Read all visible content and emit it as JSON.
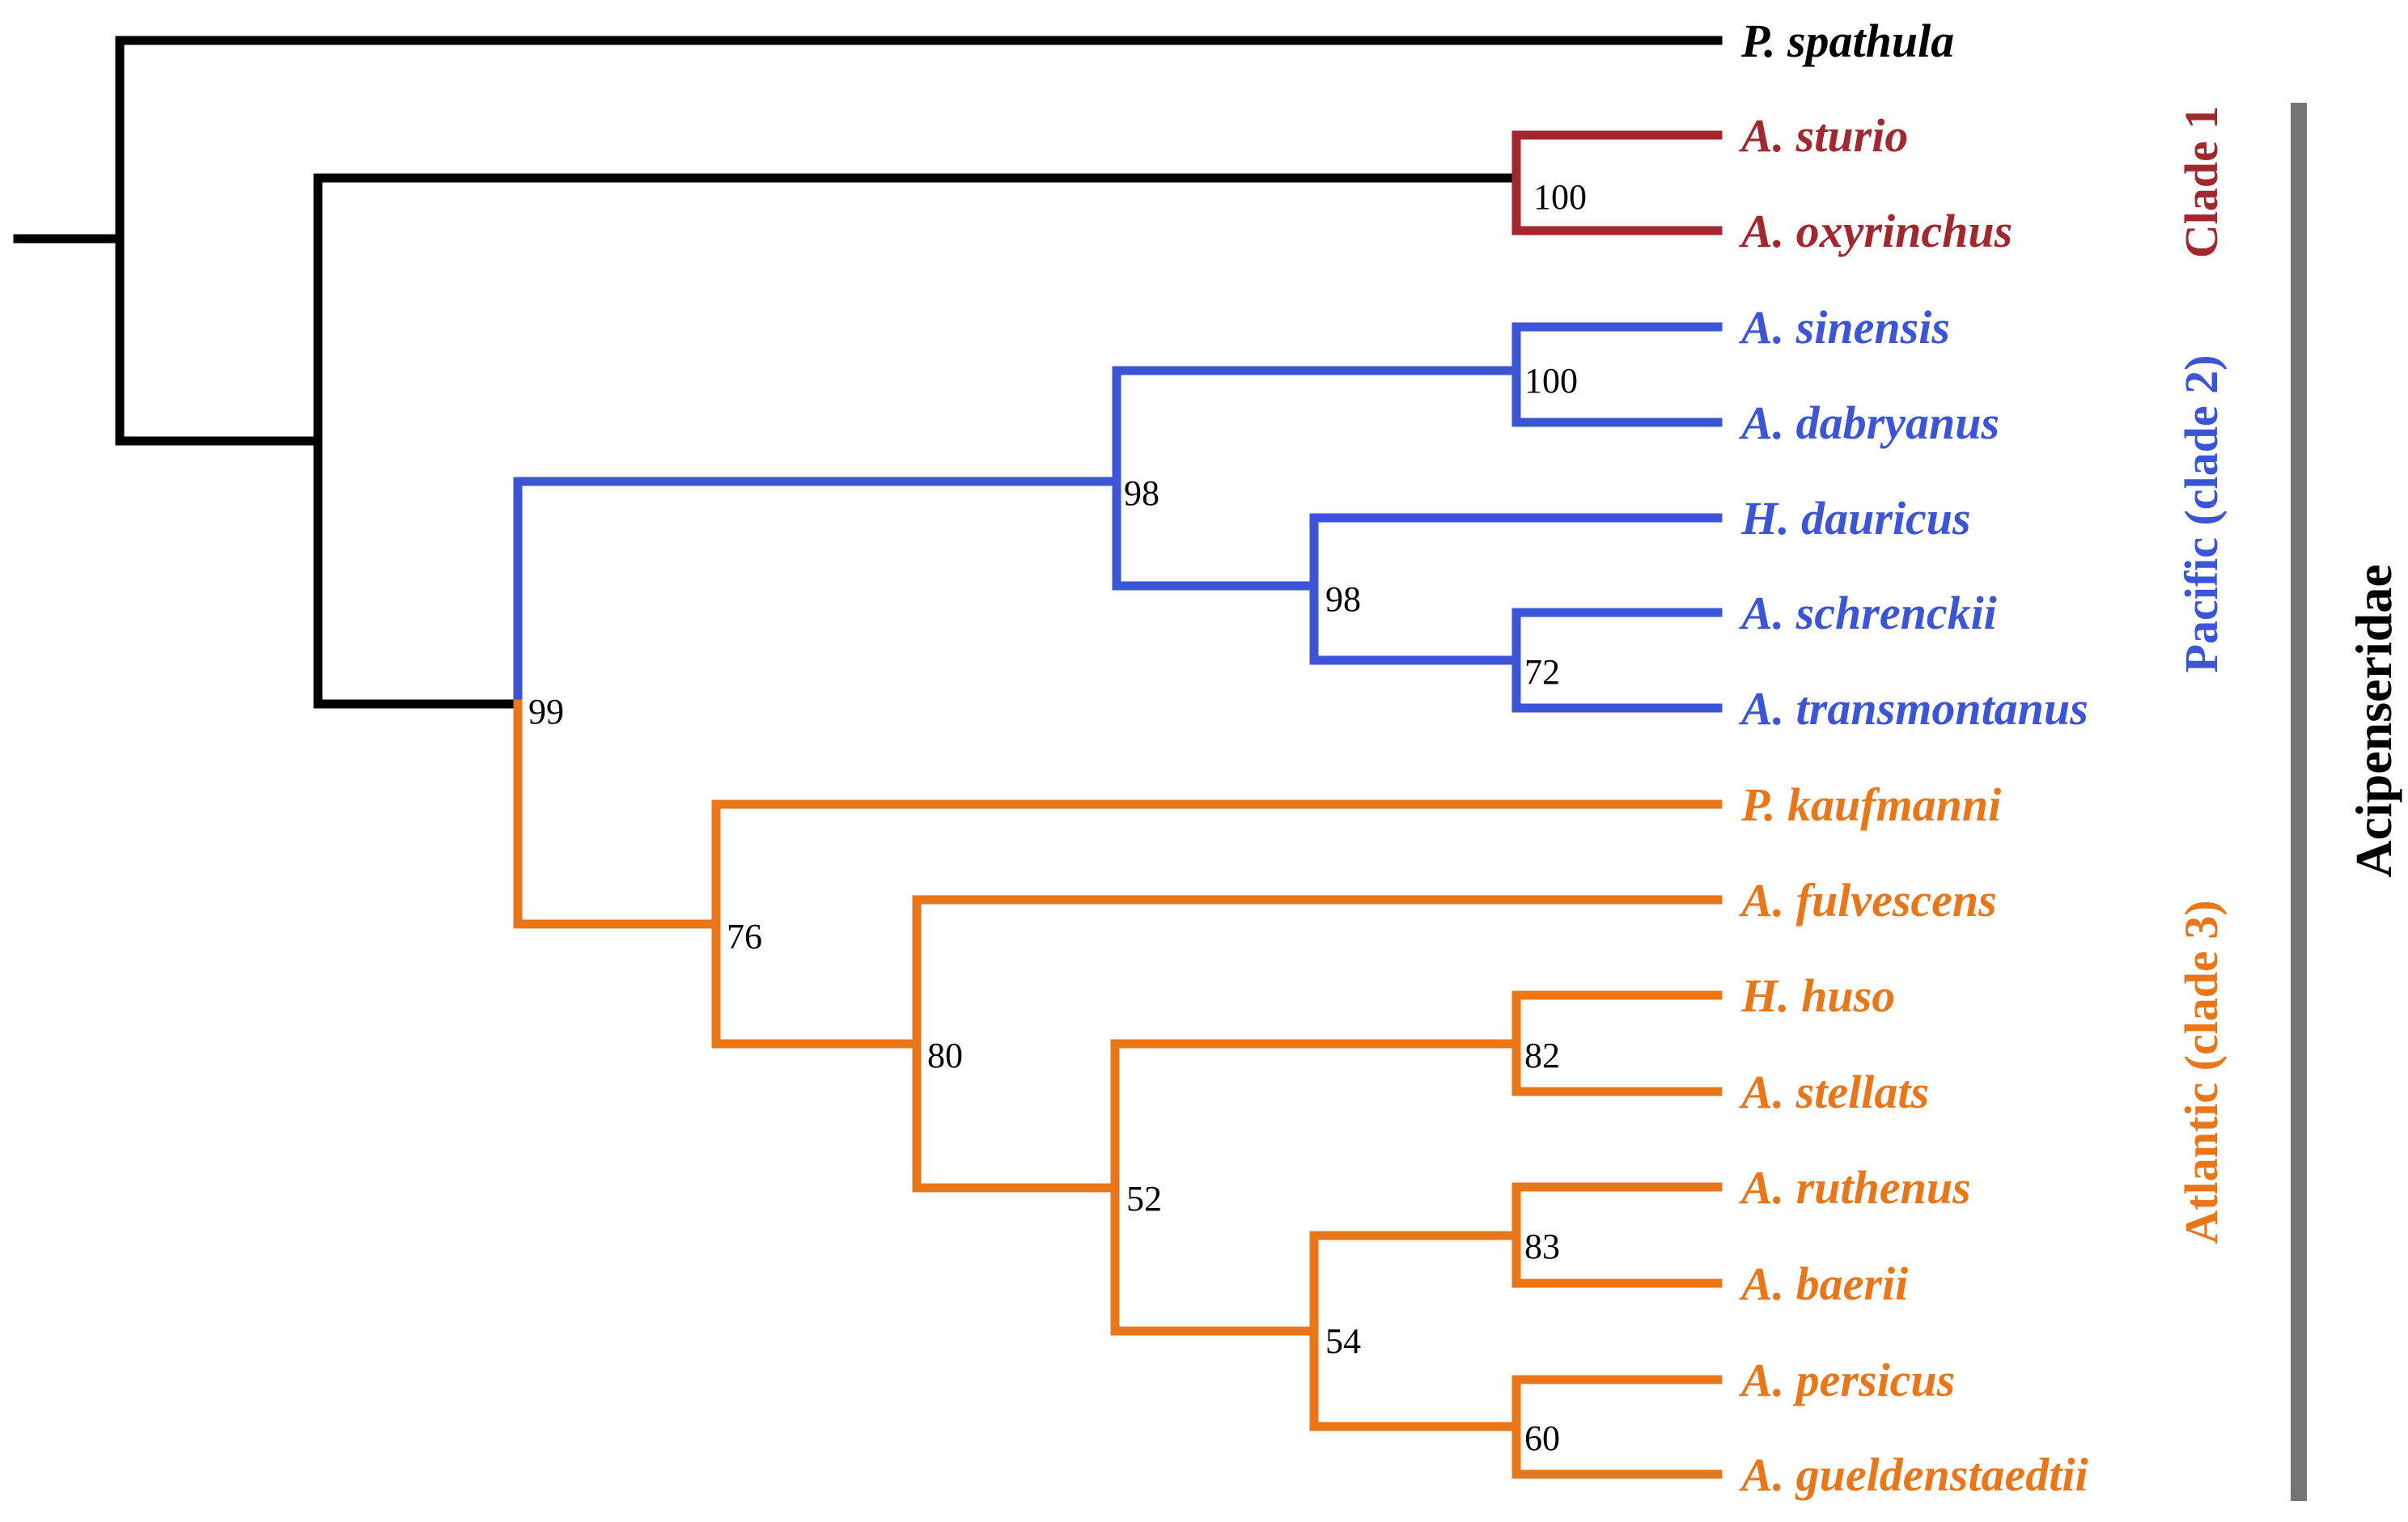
{
  "colors": {
    "outgroup": "#000000",
    "clade1": "#a0282e",
    "pacific": "#3b55d6",
    "atlantic": "#e9771a",
    "family_bar": "#767373"
  },
  "taxa": [
    {
      "id": "spathula",
      "name": "P. spathula",
      "clade": "outgroup"
    },
    {
      "id": "sturio",
      "name": "A. sturio",
      "clade": "clade1"
    },
    {
      "id": "oxyrinchus",
      "name": "A. oxyrinchus",
      "clade": "clade1"
    },
    {
      "id": "sinensis",
      "name": "A. sinensis",
      "clade": "pacific"
    },
    {
      "id": "dabryanus",
      "name": "A. dabryanus",
      "clade": "pacific"
    },
    {
      "id": "dauricus",
      "name": "H. dauricus",
      "clade": "pacific"
    },
    {
      "id": "schrenckii",
      "name": "A. schrenckii",
      "clade": "pacific"
    },
    {
      "id": "transmontanus",
      "name": "A. transmontanus",
      "clade": "pacific"
    },
    {
      "id": "kaufmanni",
      "name": "P. kaufmanni",
      "clade": "atlantic"
    },
    {
      "id": "fulvescens",
      "name": "A. fulvescens",
      "clade": "atlantic"
    },
    {
      "id": "huso",
      "name": "H. huso",
      "clade": "atlantic"
    },
    {
      "id": "stellats",
      "name": "A. stellats",
      "clade": "atlantic"
    },
    {
      "id": "ruthenus",
      "name": "A. ruthenus",
      "clade": "atlantic"
    },
    {
      "id": "baerii",
      "name": "A. baerii",
      "clade": "atlantic"
    },
    {
      "id": "persicus",
      "name": "A. persicus",
      "clade": "atlantic"
    },
    {
      "id": "gueldenstaedtii",
      "name": "A. gueldenstaedtii",
      "clade": "atlantic"
    }
  ],
  "support_values": [
    {
      "node": "clade1",
      "value": "100"
    },
    {
      "node": "sinensis-dabryanus",
      "value": "100"
    },
    {
      "node": "pacific-inner",
      "value": "98"
    },
    {
      "node": "dauricus-group",
      "value": "98"
    },
    {
      "node": "schrenckii-transmontanus",
      "value": "72"
    },
    {
      "node": "pacific-atlantic",
      "value": "99"
    },
    {
      "node": "atlantic-root",
      "value": "76"
    },
    {
      "node": "fulvescens-group",
      "value": "80"
    },
    {
      "node": "huso-stellats",
      "value": "82"
    },
    {
      "node": "huso-ruthenus-group",
      "value": "52"
    },
    {
      "node": "ruthenus-baerii",
      "value": "83"
    },
    {
      "node": "ruthenus-persicus-group",
      "value": "54"
    },
    {
      "node": "persicus-gueldenstaedtii",
      "value": "60"
    }
  ],
  "clade_labels": {
    "clade1": "Clade 1",
    "pacific": "Pacific (clade 2)",
    "atlantic": "Atlantic (clade 3)"
  },
  "family_label": "Acipenseridae"
}
